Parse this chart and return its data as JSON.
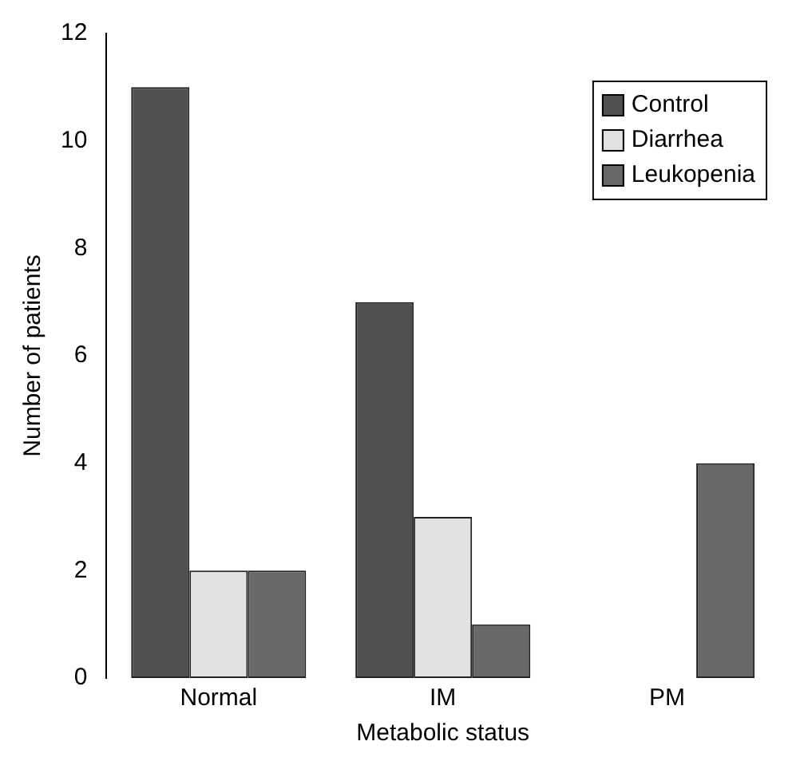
{
  "chart_data": {
    "type": "bar",
    "xlabel": "Metabolic status",
    "ylabel": "Number of patients",
    "categories": [
      "Normal",
      "IM",
      "PM"
    ],
    "series": [
      {
        "name": "Control",
        "color": "#505050",
        "values": [
          11,
          7,
          0
        ]
      },
      {
        "name": "Diarrhea",
        "color": "#e2e2e2",
        "values": [
          2,
          3,
          0
        ]
      },
      {
        "name": "Leukopenia",
        "color": "#686868",
        "values": [
          2,
          1,
          4
        ]
      }
    ],
    "ylim": [
      0,
      12
    ],
    "yticks": [
      0,
      2,
      4,
      6,
      8,
      10,
      12
    ],
    "grid": false,
    "legend": "top right"
  }
}
